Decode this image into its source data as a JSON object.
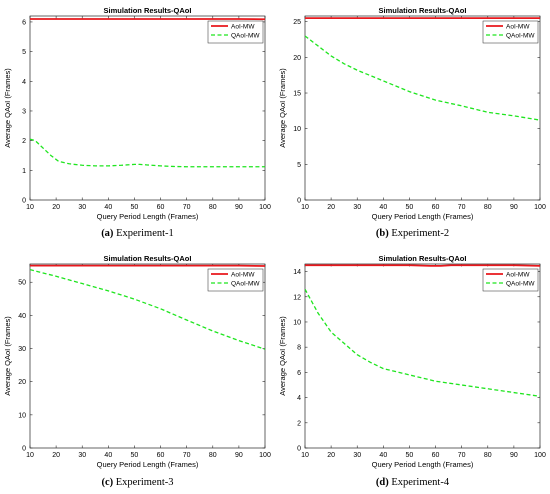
{
  "colors": {
    "aoi": "#e8171c",
    "qaoi": "#1fe51f",
    "axis": "#262626",
    "text": "#000000"
  },
  "panels": [
    {
      "caption_label": "(a)",
      "caption_text": "Experiment-1",
      "chart_data": {
        "type": "line",
        "title": "Simulation Results-QAoI",
        "xlabel": "Query Period Length (Frames)",
        "ylabel": "Average QAoI (Frames)",
        "xlim": [
          10,
          100
        ],
        "ylim": [
          0,
          6.2
        ],
        "xticks": [
          10,
          20,
          30,
          40,
          50,
          60,
          70,
          80,
          90,
          100
        ],
        "yticks": [
          0,
          1,
          2,
          3,
          4,
          5,
          6
        ],
        "legend_position": "top-right",
        "grid": false,
        "series": [
          {
            "name": "AoI-MW",
            "style": "solid",
            "x": [
              10,
              20,
              30,
              40,
              50,
              60,
              70,
              80,
              90,
              100
            ],
            "y": [
              6.1,
              6.1,
              6.1,
              6.1,
              6.1,
              6.1,
              6.1,
              6.1,
              6.1,
              6.09
            ]
          },
          {
            "name": "QAoI-MW",
            "style": "dashed",
            "x": [
              10,
              12,
              15,
              18,
              21,
              25,
              30,
              35,
              40,
              45,
              50,
              52,
              55,
              60,
              65,
              70,
              80,
              90,
              100
            ],
            "y": [
              2.05,
              2.0,
              1.75,
              1.5,
              1.3,
              1.22,
              1.17,
              1.15,
              1.15,
              1.17,
              1.2,
              1.2,
              1.18,
              1.15,
              1.13,
              1.12,
              1.12,
              1.12,
              1.12
            ]
          }
        ]
      }
    },
    {
      "caption_label": "(b)",
      "caption_text": "Experiment-2",
      "chart_data": {
        "type": "line",
        "title": "Simulation Results-QAoI",
        "xlabel": "Query Period Length (Frames)",
        "ylabel": "Average QAoI (Frames)",
        "xlim": [
          10,
          100
        ],
        "ylim": [
          0,
          25.8
        ],
        "xticks": [
          10,
          20,
          30,
          40,
          50,
          60,
          70,
          80,
          90,
          100
        ],
        "yticks": [
          0,
          5,
          10,
          15,
          20,
          25
        ],
        "legend_position": "top-right",
        "grid": false,
        "series": [
          {
            "name": "AoI-MW",
            "style": "solid",
            "x": [
              10,
              20,
              30,
              40,
              50,
              60,
              70,
              80,
              90,
              100
            ],
            "y": [
              25.5,
              25.5,
              25.5,
              25.5,
              25.5,
              25.5,
              25.5,
              25.5,
              25.5,
              25.5
            ]
          },
          {
            "name": "QAoI-MW",
            "style": "dashed",
            "x": [
              10,
              15,
              20,
              25,
              30,
              40,
              50,
              60,
              70,
              80,
              90,
              100
            ],
            "y": [
              23.0,
              21.6,
              20.2,
              19.1,
              18.2,
              16.7,
              15.2,
              14.0,
              13.2,
              12.3,
              11.8,
              11.2
            ]
          }
        ]
      }
    },
    {
      "caption_label": "(c)",
      "caption_text": "Experiment-3",
      "chart_data": {
        "type": "line",
        "title": "Simulation Results-QAoI",
        "xlabel": "Query Period Length (Frames)",
        "ylabel": "Average QAoI (Frames)",
        "xlim": [
          10,
          100
        ],
        "ylim": [
          0,
          55.5
        ],
        "xticks": [
          10,
          20,
          30,
          40,
          50,
          60,
          70,
          80,
          90,
          100
        ],
        "yticks": [
          0,
          10,
          20,
          30,
          40,
          50
        ],
        "legend_position": "top-right",
        "grid": false,
        "series": [
          {
            "name": "AoI-MW",
            "style": "solid",
            "x": [
              10,
              20,
              30,
              40,
              50,
              60,
              70,
              80,
              90,
              100
            ],
            "y": [
              55.0,
              55.0,
              55.0,
              55.0,
              55.0,
              55.0,
              55.0,
              55.0,
              55.0,
              54.9
            ]
          },
          {
            "name": "QAoI-MW",
            "style": "dashed",
            "x": [
              10,
              20,
              30,
              40,
              50,
              60,
              70,
              80,
              90,
              100
            ],
            "y": [
              53.8,
              51.8,
              49.6,
              47.4,
              44.9,
              42.0,
              38.6,
              35.3,
              32.4,
              29.8
            ]
          }
        ]
      }
    },
    {
      "caption_label": "(d)",
      "caption_text": "Experiment-4",
      "chart_data": {
        "type": "line",
        "title": "Simulation Results-QAoI",
        "xlabel": "Query Period Length (Frames)",
        "ylabel": "Average QAoI (Frames)",
        "xlim": [
          10,
          100
        ],
        "ylim": [
          0,
          14.6
        ],
        "xticks": [
          10,
          20,
          30,
          40,
          50,
          60,
          70,
          80,
          90,
          100
        ],
        "yticks": [
          0,
          2,
          4,
          6,
          8,
          10,
          12,
          14
        ],
        "legend_position": "top-right",
        "grid": false,
        "series": [
          {
            "name": "AoI-MW",
            "style": "solid",
            "x": [
              10,
              20,
              30,
              40,
              50,
              58,
              62,
              66,
              70,
              80,
              90,
              100
            ],
            "y": [
              14.5,
              14.5,
              14.5,
              14.5,
              14.5,
              14.45,
              14.45,
              14.5,
              14.5,
              14.5,
              14.5,
              14.45
            ]
          },
          {
            "name": "QAoI-MW",
            "style": "dashed",
            "x": [
              10,
              15,
              20,
              25,
              30,
              35,
              40,
              50,
              60,
              70,
              80,
              90,
              100
            ],
            "y": [
              12.6,
              10.7,
              9.2,
              8.3,
              7.4,
              6.8,
              6.3,
              5.8,
              5.3,
              5.0,
              4.7,
              4.4,
              4.1
            ]
          }
        ]
      }
    }
  ]
}
